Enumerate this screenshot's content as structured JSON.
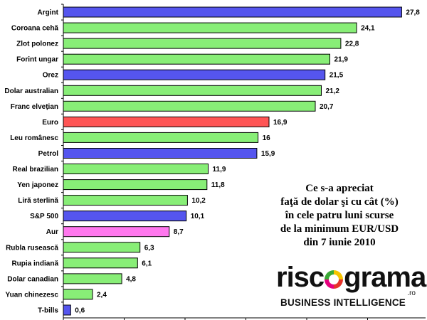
{
  "chart_data": {
    "type": "bar",
    "orientation": "horizontal",
    "categories": [
      "Argint",
      "Coroana cehă",
      "Zlot polonez",
      "Forint ungar",
      "Orez",
      "Dolar australian",
      "Franc elvețian",
      "Euro",
      "Leu românesc",
      "Petrol",
      "Real brazilian",
      "Yen japonez",
      "Liră sterlină",
      "S&P 500",
      "Aur",
      "Rubla rusească",
      "Rupia indiană",
      "Dolar canadian",
      "Yuan chinezesc",
      "T-bills"
    ],
    "values": [
      27.8,
      24.1,
      22.8,
      21.9,
      21.5,
      21.2,
      20.7,
      16.9,
      16,
      15.9,
      11.9,
      11.8,
      10.2,
      10.1,
      8.7,
      6.3,
      6.1,
      4.8,
      2.4,
      0.6
    ],
    "value_labels": [
      "27,8",
      "24,1",
      "22,8",
      "21,9",
      "21,5",
      "21,2",
      "20,7",
      "16,9",
      "16",
      "15,9",
      "11,9",
      "11,8",
      "10,2",
      "10,1",
      "8,7",
      "6,3",
      "6,1",
      "4,8",
      "2,4",
      "0,6"
    ],
    "bar_colors": [
      "#5555ee",
      "#88ee77",
      "#88ee77",
      "#88ee77",
      "#5555ee",
      "#88ee77",
      "#88ee77",
      "#ff5555",
      "#88ee77",
      "#5555ee",
      "#88ee77",
      "#88ee77",
      "#88ee77",
      "#5555ee",
      "#ff77ee",
      "#88ee77",
      "#88ee77",
      "#88ee77",
      "#88ee77",
      "#5555ee"
    ],
    "xlim": [
      0,
      30
    ],
    "grid": false,
    "title": ""
  },
  "caption": {
    "lines": [
      "Ce s-a apreciat",
      "faţă de dolar şi cu cât (%)",
      "în  cele patru luni scurse",
      "de la minimum EUR/USD",
      "din 7 iunie 2010"
    ]
  },
  "logo": {
    "word_prefix": "risc",
    "word_suffix": "grama",
    "tld": ".ro",
    "tagline": "BUSINESS INTELLIGENCE",
    "ring_colors": [
      "#f6c400",
      "#e5332a",
      "#e5007d",
      "#3aa935"
    ]
  }
}
